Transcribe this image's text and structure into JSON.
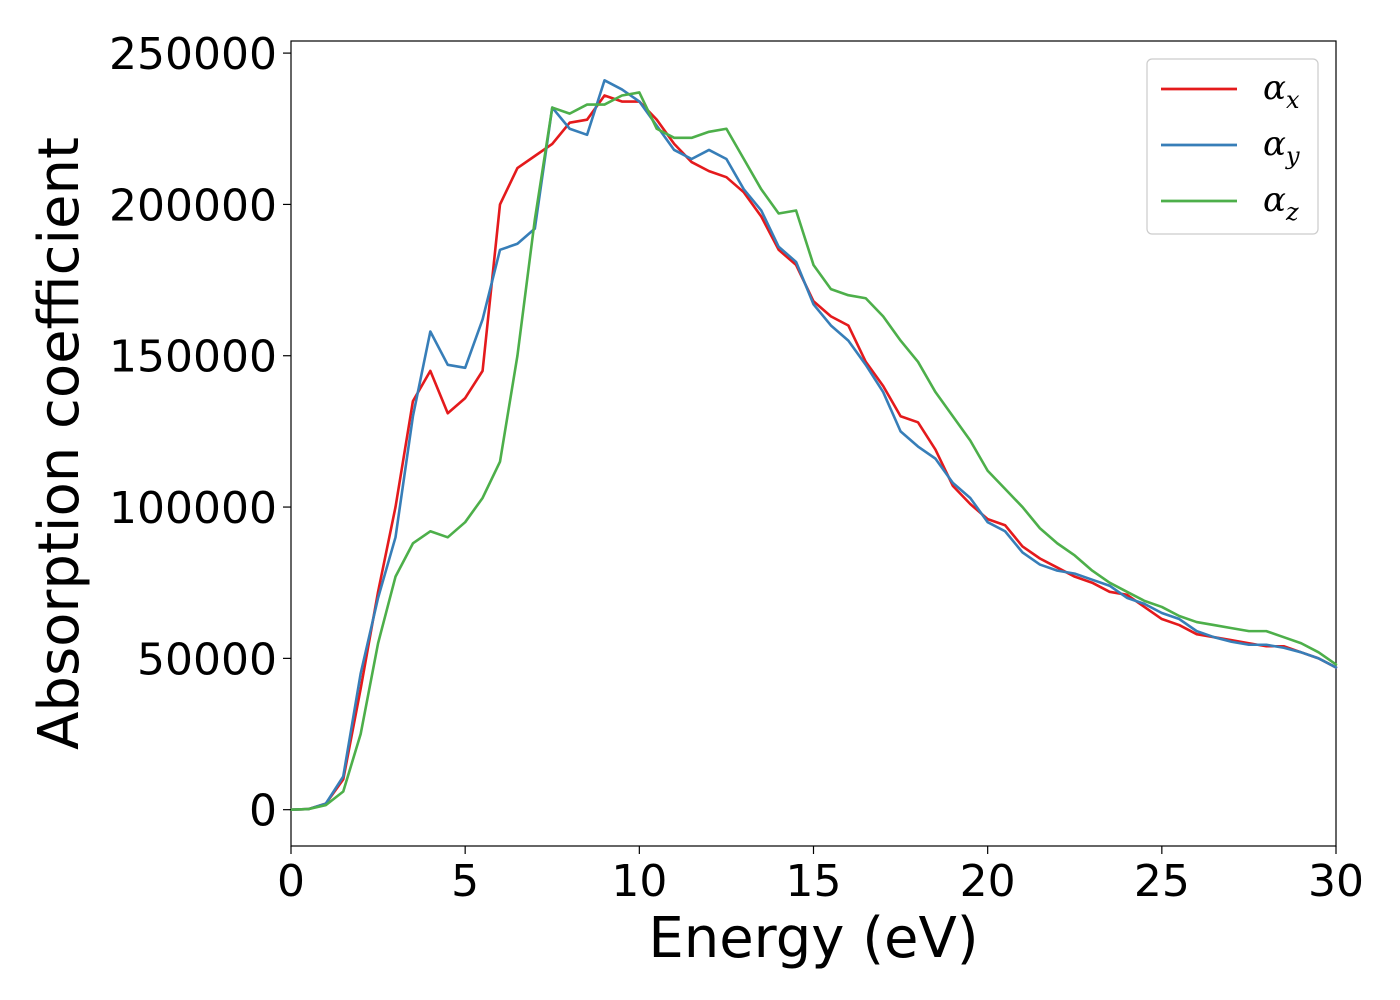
{
  "chart_data": {
    "type": "line",
    "title": "",
    "xlabel": "Energy (eV)",
    "ylabel": "Absorption coefficient",
    "xlim": [
      0,
      30
    ],
    "ylim": [
      -12000,
      254000
    ],
    "xticks": [
      0,
      5,
      10,
      15,
      20,
      25,
      30
    ],
    "xtick_labels": [
      "0",
      "5",
      "10",
      "15",
      "20",
      "25",
      "30"
    ],
    "yticks": [
      0,
      50000,
      100000,
      150000,
      200000,
      250000
    ],
    "ytick_labels": [
      "0",
      "50000",
      "100000",
      "150000",
      "200000",
      "250000"
    ],
    "grid": false,
    "legend_position": "top-right",
    "series": [
      {
        "name": "α",
        "subscript": "x",
        "color": "#e41a1c",
        "x": [
          0,
          0.5,
          1.0,
          1.5,
          2.0,
          2.5,
          3.0,
          3.5,
          4.0,
          4.5,
          5.0,
          5.5,
          6.0,
          6.5,
          7.0,
          7.5,
          8.0,
          8.5,
          9.0,
          9.5,
          10.0,
          10.5,
          11.0,
          11.5,
          12.0,
          12.5,
          13.0,
          13.5,
          14.0,
          14.5,
          15.0,
          15.5,
          16.0,
          16.5,
          17.0,
          17.5,
          18.0,
          18.5,
          19.0,
          19.5,
          20.0,
          20.5,
          21.0,
          21.5,
          22.0,
          22.5,
          23.0,
          23.5,
          24.0,
          24.5,
          25.0,
          25.5,
          26.0,
          26.5,
          27.0,
          27.5,
          28.0,
          28.5,
          29.0,
          29.5,
          30.0
        ],
        "values": [
          0,
          200,
          2000,
          10000,
          40000,
          72000,
          100000,
          135000,
          145000,
          131000,
          136000,
          145000,
          200000,
          212000,
          216000,
          220000,
          227000,
          228000,
          236000,
          234000,
          234000,
          228000,
          220000,
          214000,
          211000,
          209000,
          204000,
          196000,
          185000,
          180000,
          168000,
          163000,
          160000,
          148000,
          140000,
          130000,
          128000,
          119000,
          107000,
          101000,
          96000,
          94000,
          87000,
          83000,
          80000,
          77000,
          75000,
          72000,
          71000,
          67000,
          63000,
          61000,
          58000,
          57000,
          56000,
          55000,
          54000,
          54000,
          52000,
          50000,
          47000
        ]
      },
      {
        "name": "α",
        "subscript": "y",
        "color": "#377eb8",
        "x": [
          0,
          0.5,
          1.0,
          1.5,
          2.0,
          2.5,
          3.0,
          3.5,
          4.0,
          4.5,
          5.0,
          5.5,
          6.0,
          6.5,
          7.0,
          7.5,
          8.0,
          8.5,
          9.0,
          9.5,
          10.0,
          10.5,
          11.0,
          11.5,
          12.0,
          12.5,
          13.0,
          13.5,
          14.0,
          14.5,
          15.0,
          15.5,
          16.0,
          16.5,
          17.0,
          17.5,
          18.0,
          18.5,
          19.0,
          19.5,
          20.0,
          20.5,
          21.0,
          21.5,
          22.0,
          22.5,
          23.0,
          23.5,
          24.0,
          24.5,
          25.0,
          25.5,
          26.0,
          26.5,
          27.0,
          27.5,
          28.0,
          28.5,
          29.0,
          29.5,
          30.0
        ],
        "values": [
          0,
          200,
          2000,
          11000,
          45000,
          70000,
          90000,
          130000,
          158000,
          147000,
          146000,
          162000,
          185000,
          187000,
          192000,
          232000,
          225000,
          223000,
          241000,
          238000,
          234000,
          226000,
          218000,
          215000,
          218000,
          215000,
          205000,
          198000,
          186000,
          181000,
          167000,
          160000,
          155000,
          147000,
          138000,
          125000,
          120000,
          116000,
          108000,
          103000,
          95000,
          92000,
          85000,
          81000,
          79000,
          78000,
          76000,
          74000,
          70000,
          68000,
          65000,
          63000,
          59000,
          57000,
          55500,
          54500,
          54500,
          53500,
          52000,
          50000,
          47000
        ]
      },
      {
        "name": "α",
        "subscript": "z",
        "color": "#4daf4a",
        "x": [
          0,
          0.5,
          1.0,
          1.5,
          2.0,
          2.5,
          3.0,
          3.5,
          4.0,
          4.5,
          5.0,
          5.5,
          6.0,
          6.5,
          7.0,
          7.5,
          8.0,
          8.5,
          9.0,
          9.5,
          10.0,
          10.5,
          11.0,
          11.5,
          12.0,
          12.5,
          13.0,
          13.5,
          14.0,
          14.5,
          15.0,
          15.5,
          16.0,
          16.5,
          17.0,
          17.5,
          18.0,
          18.5,
          19.0,
          19.5,
          20.0,
          20.5,
          21.0,
          21.5,
          22.0,
          22.5,
          23.0,
          23.5,
          24.0,
          24.5,
          25.0,
          25.5,
          26.0,
          26.5,
          27.0,
          27.5,
          28.0,
          28.5,
          29.0,
          29.5,
          30.0
        ],
        "values": [
          0,
          200,
          1500,
          6000,
          25000,
          55000,
          77000,
          88000,
          92000,
          90000,
          95000,
          103000,
          115000,
          150000,
          195000,
          232000,
          230000,
          233000,
          233000,
          236000,
          237000,
          225000,
          222000,
          222000,
          224000,
          225000,
          215000,
          205000,
          197000,
          198000,
          180000,
          172000,
          170000,
          169000,
          163000,
          155000,
          148000,
          138000,
          130000,
          122000,
          112000,
          106000,
          100000,
          93000,
          88000,
          84000,
          79000,
          75000,
          72000,
          69000,
          67000,
          64000,
          62000,
          61000,
          60000,
          59000,
          59000,
          57000,
          55000,
          52000,
          48000
        ]
      }
    ]
  }
}
